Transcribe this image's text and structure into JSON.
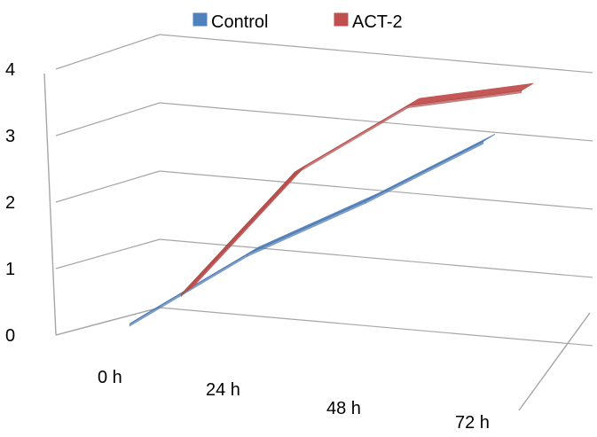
{
  "chart_data": {
    "type": "line",
    "title": "",
    "xlabel": "",
    "ylabel": "",
    "categories": [
      "0 h",
      "24 h",
      "48 h",
      "72 h"
    ],
    "ylim": [
      0,
      4
    ],
    "yticks": [
      "0",
      "1",
      "2",
      "3",
      "4"
    ],
    "grid": true,
    "legend": "top",
    "series": [
      {
        "name": "Control",
        "values": [
          0.1,
          0.9,
          1.45,
          2.1
        ],
        "color": "#4f81bd"
      },
      {
        "name": "ACT-2",
        "values": [
          0.6,
          2.2,
          3.0,
          3.05
        ],
        "color": "#c0504d"
      }
    ]
  }
}
